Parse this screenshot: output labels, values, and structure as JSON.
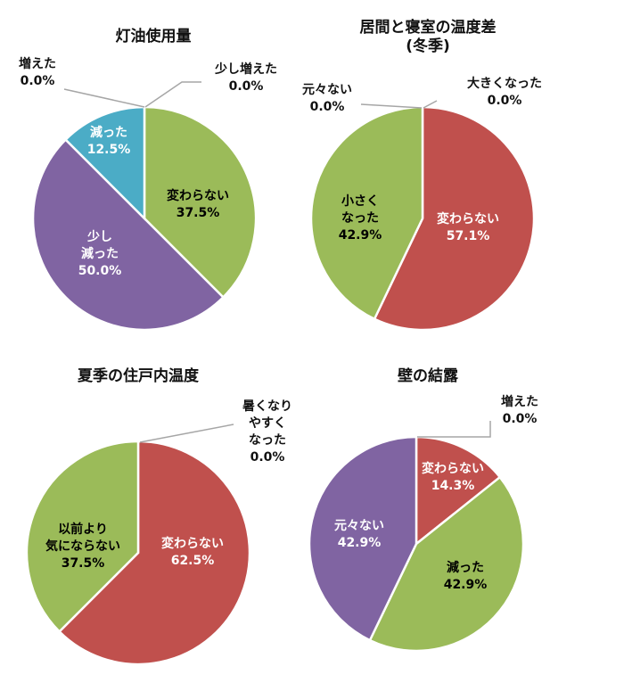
{
  "colors": {
    "green": "#9bbb59",
    "red": "#c0504d",
    "purple": "#8064a2",
    "teal": "#4bacc6"
  },
  "chart_data": [
    {
      "type": "pie",
      "title": [
        "灯油使用量"
      ],
      "slices": [
        {
          "lines": [
            "変わらない"
          ],
          "value": 37.5,
          "pct": "37.5%",
          "color": "#9bbb59",
          "text_color": "#000000"
        },
        {
          "lines": [
            "少し",
            "減った"
          ],
          "value": 50.0,
          "pct": "50.0%",
          "color": "#8064a2",
          "text_color": "#ffffff"
        },
        {
          "lines": [
            "減った"
          ],
          "value": 12.5,
          "pct": "12.5%",
          "color": "#4bacc6",
          "text_color": "#ffffff"
        },
        {
          "lines": [
            "増えた"
          ],
          "value": 0.0,
          "pct": "0.0%",
          "color": null,
          "text_color": "#000000"
        },
        {
          "lines": [
            "少し増えた"
          ],
          "value": 0.0,
          "pct": "0.0%",
          "color": null,
          "text_color": "#000000"
        }
      ]
    },
    {
      "type": "pie",
      "title": [
        "居間と寝室の温度差",
        "(冬季)"
      ],
      "slices": [
        {
          "lines": [
            "大きくなった"
          ],
          "value": 0.0,
          "pct": "0.0%",
          "color": null,
          "text_color": "#000000"
        },
        {
          "lines": [
            "変わらない"
          ],
          "value": 57.1,
          "pct": "57.1%",
          "color": "#c0504d",
          "text_color": "#ffffff"
        },
        {
          "lines": [
            "小さく",
            "なった"
          ],
          "value": 42.9,
          "pct": "42.9%",
          "color": "#9bbb59",
          "text_color": "#000000"
        },
        {
          "lines": [
            "元々ない"
          ],
          "value": 0.0,
          "pct": "0.0%",
          "color": null,
          "text_color": "#000000"
        }
      ]
    },
    {
      "type": "pie",
      "title": [
        "夏季の住戸内温度"
      ],
      "slices": [
        {
          "lines": [
            "暑くなり",
            "やすく",
            "なった"
          ],
          "value": 0.0,
          "pct": "0.0%",
          "color": null,
          "text_color": "#000000"
        },
        {
          "lines": [
            "変わらない"
          ],
          "value": 62.5,
          "pct": "62.5%",
          "color": "#c0504d",
          "text_color": "#ffffff"
        },
        {
          "lines": [
            "以前より",
            "気にならない"
          ],
          "value": 37.5,
          "pct": "37.5%",
          "color": "#9bbb59",
          "text_color": "#000000"
        }
      ]
    },
    {
      "type": "pie",
      "title": [
        "壁の結露"
      ],
      "slices": [
        {
          "lines": [
            "増えた"
          ],
          "value": 0.0,
          "pct": "0.0%",
          "color": null,
          "text_color": "#000000"
        },
        {
          "lines": [
            "変わらない"
          ],
          "value": 14.3,
          "pct": "14.3%",
          "color": "#c0504d",
          "text_color": "#ffffff"
        },
        {
          "lines": [
            "減った"
          ],
          "value": 42.9,
          "pct": "42.9%",
          "color": "#9bbb59",
          "text_color": "#000000"
        },
        {
          "lines": [
            "元々ない"
          ],
          "value": 42.9,
          "pct": "42.9%",
          "color": "#8064a2",
          "text_color": "#ffffff"
        }
      ]
    }
  ]
}
